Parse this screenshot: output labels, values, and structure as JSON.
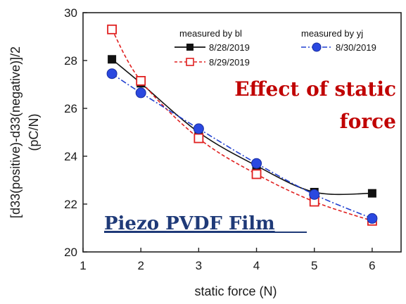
{
  "chart_data": {
    "type": "line",
    "title": "",
    "xlabel": "static force (N)",
    "ylabel_lines": [
      "[d33(positive)-d33(negative)]/2",
      "(pC/N)"
    ],
    "xlim": [
      1,
      6.5
    ],
    "ylim": [
      20,
      30
    ],
    "xticks": [
      1,
      2,
      3,
      4,
      5,
      6
    ],
    "yticks": [
      20,
      22,
      24,
      26,
      28,
      30
    ],
    "grid": false,
    "legend_groups": [
      "measured by bl",
      "measured by yj"
    ],
    "series": [
      {
        "name": "8/28/2019",
        "color": "#111111",
        "marker": "filled-square",
        "line": "solid",
        "x": [
          1.5,
          2,
          3,
          4,
          5,
          6
        ],
        "y": [
          28.05,
          27.05,
          25.0,
          23.6,
          22.5,
          22.45
        ]
      },
      {
        "name": "8/29/2019",
        "color": "#e02020",
        "marker": "open-square",
        "line": "dashed",
        "x": [
          1.5,
          2,
          3,
          4,
          5,
          6
        ],
        "y": [
          29.3,
          27.15,
          24.75,
          23.25,
          22.1,
          21.3
        ]
      },
      {
        "name": "8/30/2019",
        "color": "#2040d0",
        "marker": "filled-circle",
        "line": "dashdot",
        "x": [
          1.5,
          2,
          3,
          4,
          5,
          6
        ],
        "y": [
          27.45,
          26.65,
          25.15,
          23.7,
          22.4,
          21.4
        ]
      }
    ],
    "annotations": {
      "effect_line1": "Effect of static",
      "effect_line2": "force",
      "film": "Piezo PVDF Film"
    }
  }
}
